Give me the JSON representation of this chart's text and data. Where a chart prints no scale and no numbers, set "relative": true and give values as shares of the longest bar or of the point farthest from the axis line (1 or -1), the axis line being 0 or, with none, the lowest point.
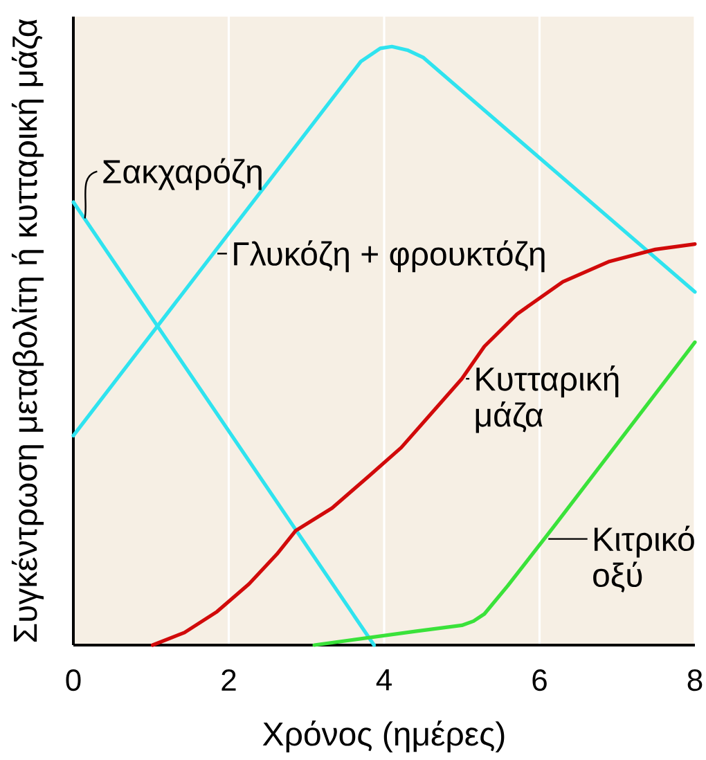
{
  "chart_data": {
    "type": "line",
    "xlabel": "Χρόνος (ημέρες)",
    "ylabel": "Συγκέντρωση μεταβολίτη ή κυτταρική μάζα",
    "relative": true,
    "xlim": [
      0,
      8
    ],
    "xticks": [
      0,
      2,
      4,
      6,
      8
    ],
    "grid": "x",
    "tick_labels": "x",
    "marker": "none",
    "line_style": "solid",
    "series": [
      {
        "name": "Σακχαρόζη",
        "color": "#2fe3ef",
        "x": [
          0,
          3.87
        ],
        "values": [
          0.74,
          0
        ]
      },
      {
        "name": "Γλυκόζη + φρουκτόζη",
        "color": "#2fe3ef",
        "x": [
          0,
          3.7,
          3.95,
          4.1,
          4.3,
          4.5,
          8
        ],
        "values": [
          0.35,
          0.975,
          0.997,
          1,
          0.994,
          0.982,
          0.59
        ]
      },
      {
        "name": "Κυτταρική μάζα",
        "color": "#d10a0a",
        "x": [
          1.02,
          1.43,
          1.85,
          2.26,
          2.62,
          2.86,
          3.33,
          3.81,
          4.22,
          4.58,
          5.0,
          5.29,
          5.71,
          6.3,
          6.9,
          7.49,
          8
        ],
        "values": [
          0,
          0.021,
          0.056,
          0.102,
          0.152,
          0.191,
          0.229,
          0.283,
          0.33,
          0.383,
          0.445,
          0.499,
          0.553,
          0.607,
          0.641,
          0.661,
          0.67
        ]
      },
      {
        "name": "Κιτρικό οξύ",
        "color": "#3ae23a",
        "x": [
          3.1,
          4.4,
          5.0,
          5.15,
          5.29,
          5.59,
          6.19,
          8
        ],
        "values": [
          0,
          0.023,
          0.033,
          0.04,
          0.052,
          0.099,
          0.199,
          0.506
        ]
      }
    ]
  }
}
